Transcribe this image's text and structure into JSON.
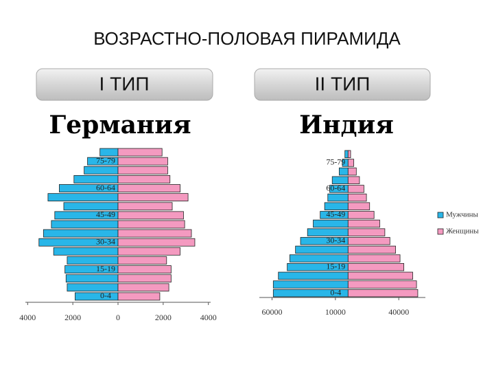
{
  "title": "ВОЗРАСТНО-ПОЛОВАЯ ПИРАМИДА",
  "chart_data": [
    {
      "type": "pyramid",
      "type_label": "I ТИП",
      "title": "Германия",
      "categories": [
        "0-4",
        null,
        null,
        "15-19",
        null,
        null,
        "30-34",
        null,
        null,
        "45-49",
        null,
        null,
        "60-64",
        null,
        null,
        "75-79",
        null
      ],
      "series": [
        {
          "color": "#29b6e8",
          "side": "left",
          "values": [
            1900,
            2250,
            2300,
            2350,
            2250,
            2850,
            3500,
            3300,
            2950,
            2800,
            2400,
            3100,
            2600,
            1950,
            1500,
            1350,
            800
          ]
        },
        {
          "color": "#f49ac0",
          "side": "right",
          "values": [
            1850,
            2250,
            2350,
            2350,
            2150,
            2750,
            3400,
            3250,
            2950,
            2900,
            2400,
            3100,
            2750,
            2300,
            2200,
            2200,
            1950
          ]
        }
      ],
      "xlim": [
        -4100,
        4100
      ],
      "xticks": [
        {
          "value": -4000,
          "label": "4000"
        },
        {
          "value": -2000,
          "label": "2000"
        },
        0,
        2000,
        4000
      ]
    },
    {
      "type": "pyramid",
      "type_label": "II ТИП",
      "title": "Индия",
      "categories": [
        "0-4",
        null,
        null,
        "15-19",
        null,
        null,
        "30-34",
        null,
        null,
        "45-49",
        null,
        null,
        "60-64",
        null,
        null,
        "75-79",
        null
      ],
      "series": [
        {
          "name": "Мужчины",
          "color": "#29b6e8",
          "side": "left",
          "values": [
            59000,
            59000,
            55000,
            48000,
            46000,
            41500,
            37500,
            32000,
            27500,
            22000,
            18500,
            16000,
            14500,
            12500,
            7000,
            4500,
            2500
          ]
        },
        {
          "name": "Женщины",
          "color": "#f49ac0",
          "side": "right",
          "values": [
            55000,
            54000,
            51000,
            44000,
            41000,
            37500,
            33000,
            29000,
            25000,
            20500,
            17000,
            14500,
            12500,
            9000,
            6500,
            4500,
            2000
          ]
        }
      ],
      "xlim": [
        -70000,
        61000
      ],
      "xticks": [
        {
          "value": -60000,
          "label": "60000"
        },
        {
          "value": -10000,
          "label": "10000"
        },
        40000
      ],
      "legend": "right"
    }
  ]
}
